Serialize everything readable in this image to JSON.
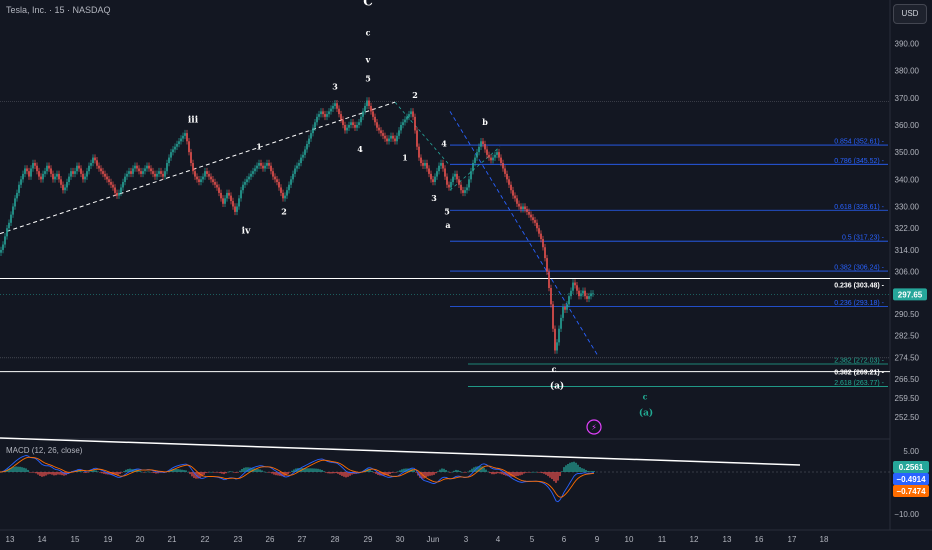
{
  "header": {
    "symbol": "Tesla, Inc. · 15 · NASDAQ",
    "currency": "USD"
  },
  "macd": {
    "title": "MACD (12, 26, close)",
    "values": [
      "0.2561",
      "−0.4914",
      "−0.7474"
    ],
    "axis": [
      "5.00",
      "−10.00"
    ]
  },
  "price_axis": [
    "400.00",
    "390.00",
    "380.00",
    "370.00",
    "360.00",
    "350.00",
    "340.00",
    "330.00",
    "322.00",
    "314.00",
    "306.00",
    "298.00",
    "290.50",
    "282.50",
    "274.50",
    "266.50",
    "259.50",
    "252.50"
  ],
  "x_axis": [
    "13",
    "14",
    "15",
    "19",
    "20",
    "21",
    "22",
    "23",
    "26",
    "27",
    "28",
    "29",
    "30",
    "Jun",
    "3",
    "4",
    "5",
    "6",
    "9",
    "10",
    "11",
    "12",
    "13",
    "16",
    "17",
    "18"
  ],
  "last_price": "297.65",
  "colors": {
    "up": "#26a69a",
    "down": "#ef5350",
    "fib": "#2962ff",
    "fib_teal": "#22ab94",
    "macd": "#2962ff",
    "signal": "#ff6d00",
    "white": "#ffffff"
  },
  "chart_data": {
    "type": "candlestick",
    "ylim": [
      247,
      406
    ],
    "price_path": [
      [
        0,
        313
      ],
      [
        2,
        314
      ],
      [
        4,
        316
      ],
      [
        6,
        319
      ],
      [
        8,
        322
      ],
      [
        10,
        324
      ],
      [
        12,
        327
      ],
      [
        14,
        330
      ],
      [
        16,
        333
      ],
      [
        18,
        335
      ],
      [
        20,
        338
      ],
      [
        22,
        340
      ],
      [
        24,
        342
      ],
      [
        26,
        344
      ],
      [
        28,
        343
      ],
      [
        30,
        341
      ],
      [
        32,
        344
      ],
      [
        34,
        346
      ],
      [
        36,
        345
      ],
      [
        38,
        343
      ],
      [
        40,
        341
      ],
      [
        42,
        340
      ],
      [
        44,
        342
      ],
      [
        46,
        343
      ],
      [
        48,
        345
      ],
      [
        50,
        344
      ],
      [
        52,
        342
      ],
      [
        54,
        340
      ],
      [
        56,
        341
      ],
      [
        58,
        342
      ],
      [
        60,
        340
      ],
      [
        62,
        338
      ],
      [
        64,
        336
      ],
      [
        66,
        337
      ],
      [
        68,
        339
      ],
      [
        70,
        341
      ],
      [
        72,
        343
      ],
      [
        74,
        342
      ],
      [
        76,
        343
      ],
      [
        78,
        345
      ],
      [
        80,
        344
      ],
      [
        82,
        342
      ],
      [
        84,
        340
      ],
      [
        86,
        341
      ],
      [
        88,
        343
      ],
      [
        90,
        345
      ],
      [
        92,
        346
      ],
      [
        94,
        348
      ],
      [
        96,
        347
      ],
      [
        98,
        345
      ],
      [
        100,
        344
      ],
      [
        102,
        343
      ],
      [
        104,
        342
      ],
      [
        106,
        341
      ],
      [
        108,
        340
      ],
      [
        110,
        339
      ],
      [
        112,
        338
      ],
      [
        114,
        337
      ],
      [
        116,
        335
      ],
      [
        118,
        334
      ],
      [
        120,
        335
      ],
      [
        122,
        337
      ],
      [
        124,
        339
      ],
      [
        126,
        341
      ],
      [
        128,
        342
      ],
      [
        130,
        343
      ],
      [
        132,
        342
      ],
      [
        134,
        344
      ],
      [
        136,
        345
      ],
      [
        138,
        344
      ],
      [
        140,
        343
      ],
      [
        142,
        342
      ],
      [
        144,
        343
      ],
      [
        146,
        344
      ],
      [
        148,
        345
      ],
      [
        150,
        344
      ],
      [
        152,
        343
      ],
      [
        154,
        342
      ],
      [
        156,
        341
      ],
      [
        158,
        342
      ],
      [
        160,
        343
      ],
      [
        162,
        342
      ],
      [
        164,
        341
      ],
      [
        166,
        343
      ],
      [
        168,
        346
      ],
      [
        170,
        348
      ],
      [
        172,
        350
      ],
      [
        174,
        351
      ],
      [
        176,
        352
      ],
      [
        178,
        353
      ],
      [
        180,
        354
      ],
      [
        182,
        355
      ],
      [
        184,
        356
      ],
      [
        186,
        357
      ],
      [
        188,
        354
      ],
      [
        190,
        350
      ],
      [
        192,
        346
      ],
      [
        194,
        343
      ],
      [
        196,
        341
      ],
      [
        198,
        340
      ],
      [
        200,
        339
      ],
      [
        202,
        340
      ],
      [
        204,
        341
      ],
      [
        206,
        343
      ],
      [
        208,
        342
      ],
      [
        210,
        341
      ],
      [
        212,
        340
      ],
      [
        214,
        339
      ],
      [
        216,
        338
      ],
      [
        218,
        337
      ],
      [
        220,
        335
      ],
      [
        222,
        333
      ],
      [
        224,
        331
      ],
      [
        226,
        333
      ],
      [
        228,
        335
      ],
      [
        230,
        334
      ],
      [
        232,
        332
      ],
      [
        234,
        330
      ],
      [
        236,
        328
      ],
      [
        238,
        330
      ],
      [
        240,
        333
      ],
      [
        242,
        336
      ],
      [
        244,
        338
      ],
      [
        246,
        339
      ],
      [
        248,
        340
      ],
      [
        250,
        341
      ],
      [
        252,
        342
      ],
      [
        254,
        343
      ],
      [
        256,
        344
      ],
      [
        258,
        345
      ],
      [
        260,
        346
      ],
      [
        262,
        345
      ],
      [
        264,
        344
      ],
      [
        266,
        345
      ],
      [
        268,
        346
      ],
      [
        270,
        345
      ],
      [
        272,
        343
      ],
      [
        274,
        341
      ],
      [
        276,
        340
      ],
      [
        278,
        339
      ],
      [
        280,
        337
      ],
      [
        282,
        335
      ],
      [
        284,
        333
      ],
      [
        286,
        334
      ],
      [
        288,
        336
      ],
      [
        290,
        338
      ],
      [
        292,
        340
      ],
      [
        294,
        342
      ],
      [
        296,
        344
      ],
      [
        298,
        345
      ],
      [
        300,
        346
      ],
      [
        302,
        348
      ],
      [
        304,
        349
      ],
      [
        306,
        351
      ],
      [
        308,
        353
      ],
      [
        310,
        355
      ],
      [
        312,
        357
      ],
      [
        314,
        359
      ],
      [
        316,
        361
      ],
      [
        318,
        363
      ],
      [
        320,
        364
      ],
      [
        322,
        365
      ],
      [
        324,
        364
      ],
      [
        326,
        363
      ],
      [
        328,
        364
      ],
      [
        330,
        365
      ],
      [
        332,
        366
      ],
      [
        334,
        367
      ],
      [
        336,
        368
      ],
      [
        338,
        366
      ],
      [
        340,
        364
      ],
      [
        342,
        362
      ],
      [
        344,
        360
      ],
      [
        346,
        358
      ],
      [
        348,
        359
      ],
      [
        350,
        360
      ],
      [
        352,
        361
      ],
      [
        354,
        360
      ],
      [
        356,
        359
      ],
      [
        358,
        360
      ],
      [
        360,
        361
      ],
      [
        362,
        363
      ],
      [
        364,
        365
      ],
      [
        366,
        367
      ],
      [
        368,
        369
      ],
      [
        370,
        367
      ],
      [
        372,
        365
      ],
      [
        374,
        363
      ],
      [
        376,
        361
      ],
      [
        378,
        359
      ],
      [
        380,
        358
      ],
      [
        382,
        357
      ],
      [
        384,
        356
      ],
      [
        386,
        355
      ],
      [
        388,
        354
      ],
      [
        390,
        355
      ],
      [
        392,
        356
      ],
      [
        394,
        355
      ],
      [
        396,
        354
      ],
      [
        398,
        356
      ],
      [
        400,
        358
      ],
      [
        402,
        360
      ],
      [
        404,
        361
      ],
      [
        406,
        362
      ],
      [
        408,
        363
      ],
      [
        410,
        364
      ],
      [
        412,
        365
      ],
      [
        414,
        363
      ],
      [
        416,
        358
      ],
      [
        418,
        352
      ],
      [
        420,
        348
      ],
      [
        422,
        346
      ],
      [
        424,
        345
      ],
      [
        426,
        346
      ],
      [
        428,
        344
      ],
      [
        430,
        342
      ],
      [
        432,
        340
      ],
      [
        434,
        339
      ],
      [
        436,
        341
      ],
      [
        438,
        343
      ],
      [
        440,
        345
      ],
      [
        442,
        346
      ],
      [
        444,
        344
      ],
      [
        446,
        341
      ],
      [
        448,
        338
      ],
      [
        450,
        337
      ],
      [
        452,
        339
      ],
      [
        454,
        341
      ],
      [
        456,
        342
      ],
      [
        458,
        340
      ],
      [
        460,
        338
      ],
      [
        462,
        336
      ],
      [
        464,
        335
      ],
      [
        466,
        336
      ],
      [
        468,
        337
      ],
      [
        470,
        340
      ],
      [
        472,
        343
      ],
      [
        474,
        346
      ],
      [
        476,
        348
      ],
      [
        478,
        350
      ],
      [
        480,
        352
      ],
      [
        482,
        354
      ],
      [
        484,
        353
      ],
      [
        486,
        351
      ],
      [
        488,
        349
      ],
      [
        490,
        348
      ],
      [
        492,
        347
      ],
      [
        494,
        348
      ],
      [
        496,
        349
      ],
      [
        498,
        350
      ],
      [
        500,
        348
      ],
      [
        502,
        346
      ],
      [
        504,
        344
      ],
      [
        506,
        342
      ],
      [
        508,
        340
      ],
      [
        510,
        338
      ],
      [
        512,
        336
      ],
      [
        514,
        334
      ],
      [
        516,
        333
      ],
      [
        518,
        331
      ],
      [
        520,
        330
      ],
      [
        522,
        329
      ],
      [
        524,
        330
      ],
      [
        526,
        329
      ],
      [
        528,
        328
      ],
      [
        530,
        327
      ],
      [
        532,
        326
      ],
      [
        534,
        325
      ],
      [
        536,
        324
      ],
      [
        538,
        322
      ],
      [
        540,
        320
      ],
      [
        542,
        318
      ],
      [
        544,
        315
      ],
      [
        546,
        311
      ],
      [
        548,
        306
      ],
      [
        550,
        300
      ],
      [
        552,
        294
      ],
      [
        554,
        285
      ],
      [
        556,
        277
      ],
      [
        558,
        280
      ],
      [
        560,
        285
      ],
      [
        562,
        289
      ],
      [
        564,
        293
      ],
      [
        566,
        292
      ],
      [
        568,
        294
      ],
      [
        570,
        297
      ],
      [
        572,
        299
      ],
      [
        574,
        302
      ],
      [
        576,
        301
      ],
      [
        578,
        299
      ],
      [
        580,
        297
      ],
      [
        582,
        298
      ],
      [
        584,
        299
      ],
      [
        586,
        297
      ],
      [
        588,
        296
      ],
      [
        590,
        297
      ],
      [
        592,
        298
      ],
      [
        594,
        298
      ]
    ],
    "fib_levels": [
      {
        "label": "0.854 (352.61)",
        "value": 352.61,
        "color": "#2962ff"
      },
      {
        "label": "0.786 (345.52)",
        "value": 345.52,
        "color": "#2962ff"
      },
      {
        "label": "0.618 (328.61)",
        "value": 328.61,
        "color": "#2962ff"
      },
      {
        "label": "0.5 (317.23)",
        "value": 317.23,
        "color": "#2962ff"
      },
      {
        "label": "0.382 (306.24)",
        "value": 306.24,
        "color": "#2962ff"
      },
      {
        "label": "0.236 (293.18)",
        "value": 293.18,
        "color": "#2962ff"
      },
      {
        "label": "2.382 (272.03)",
        "value": 272.03,
        "color": "#22ab94"
      },
      {
        "label": "2.618 (263.77)",
        "value": 263.77,
        "color": "#22ab94"
      }
    ],
    "horizontal_lines": [
      {
        "label": "0.236 (303.48)",
        "value": 303.48
      },
      {
        "label": "0.382 (269.21)",
        "value": 269.21
      },
      {
        "label": "",
        "value": 368.6
      }
    ],
    "wave_labels": [
      {
        "text": "C",
        "x": 368,
        "y": 404
      },
      {
        "text": "c",
        "x": 368,
        "y": 393
      },
      {
        "text": "v",
        "x": 368,
        "y": 383
      },
      {
        "text": "5",
        "x": 368,
        "y": 376
      },
      {
        "text": "3",
        "x": 335,
        "y": 373
      },
      {
        "text": "2",
        "x": 415,
        "y": 370
      },
      {
        "text": "iii",
        "x": 193,
        "y": 361
      },
      {
        "text": "b",
        "x": 485,
        "y": 360
      },
      {
        "text": "4",
        "x": 444,
        "y": 352
      },
      {
        "text": "4",
        "x": 360,
        "y": 350
      },
      {
        "text": "1",
        "x": 405,
        "y": 347
      },
      {
        "text": "1",
        "x": 259,
        "y": 351
      },
      {
        "text": "3",
        "x": 434,
        "y": 332
      },
      {
        "text": "5",
        "x": 447,
        "y": 327
      },
      {
        "text": "a",
        "x": 448,
        "y": 322
      },
      {
        "text": "2",
        "x": 284,
        "y": 327
      },
      {
        "text": "iv",
        "x": 246,
        "y": 320
      },
      {
        "text": "c",
        "x": 554,
        "y": 269
      },
      {
        "text": "(a)",
        "x": 557,
        "y": 263
      },
      {
        "text": "c",
        "x": 645,
        "y": 259
      },
      {
        "text": "(a)",
        "x": 646,
        "y": 253
      }
    ]
  }
}
